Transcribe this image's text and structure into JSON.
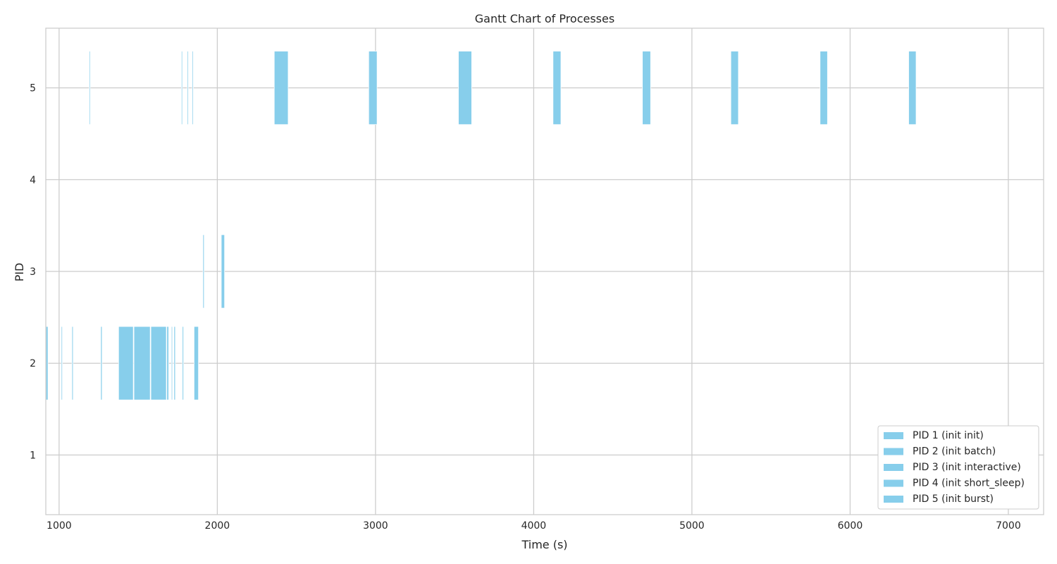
{
  "chart_data": {
    "type": "bar",
    "title": "Gantt Chart of Processes",
    "xlabel": "Time (s)",
    "ylabel": "PID",
    "xlim": [
      916,
      7223
    ],
    "ylim": [
      0.35,
      5.65
    ],
    "x_ticks": [
      1000,
      2000,
      3000,
      4000,
      5000,
      6000,
      7000
    ],
    "y_ticks": [
      1,
      2,
      3,
      4,
      5
    ],
    "grid": true,
    "legend_position": "lower-right",
    "bar_color": "#87ceeb",
    "series": [
      {
        "name": "PID 1 (init init)",
        "pid": 1,
        "segments": []
      },
      {
        "name": "PID 2 (init batch)",
        "pid": 2,
        "segments": [
          [
            917,
            13
          ],
          [
            1014,
            7
          ],
          [
            1081,
            8
          ],
          [
            1263,
            9
          ],
          [
            1376,
            93
          ],
          [
            1473,
            103
          ],
          [
            1580,
            98
          ],
          [
            1681,
            12
          ],
          [
            1710,
            6
          ],
          [
            1726,
            9
          ],
          [
            1779,
            8
          ],
          [
            1853,
            28
          ]
        ]
      },
      {
        "name": "PID 3 (init interactive)",
        "pid": 3,
        "segments": [
          [
            1909,
            8
          ],
          [
            2025,
            21
          ]
        ]
      },
      {
        "name": "PID 4 (init short_sleep)",
        "pid": 4,
        "segments": []
      },
      {
        "name": "PID 5 (init burst)",
        "pid": 5,
        "segments": [
          [
            1190,
            6
          ],
          [
            1773,
            6
          ],
          [
            1810,
            6
          ],
          [
            1842,
            6
          ],
          [
            2360,
            88
          ],
          [
            2957,
            53
          ],
          [
            3524,
            84
          ],
          [
            4122,
            50
          ],
          [
            4687,
            52
          ],
          [
            5246,
            48
          ],
          [
            5810,
            47
          ],
          [
            6370,
            47
          ]
        ]
      }
    ]
  }
}
